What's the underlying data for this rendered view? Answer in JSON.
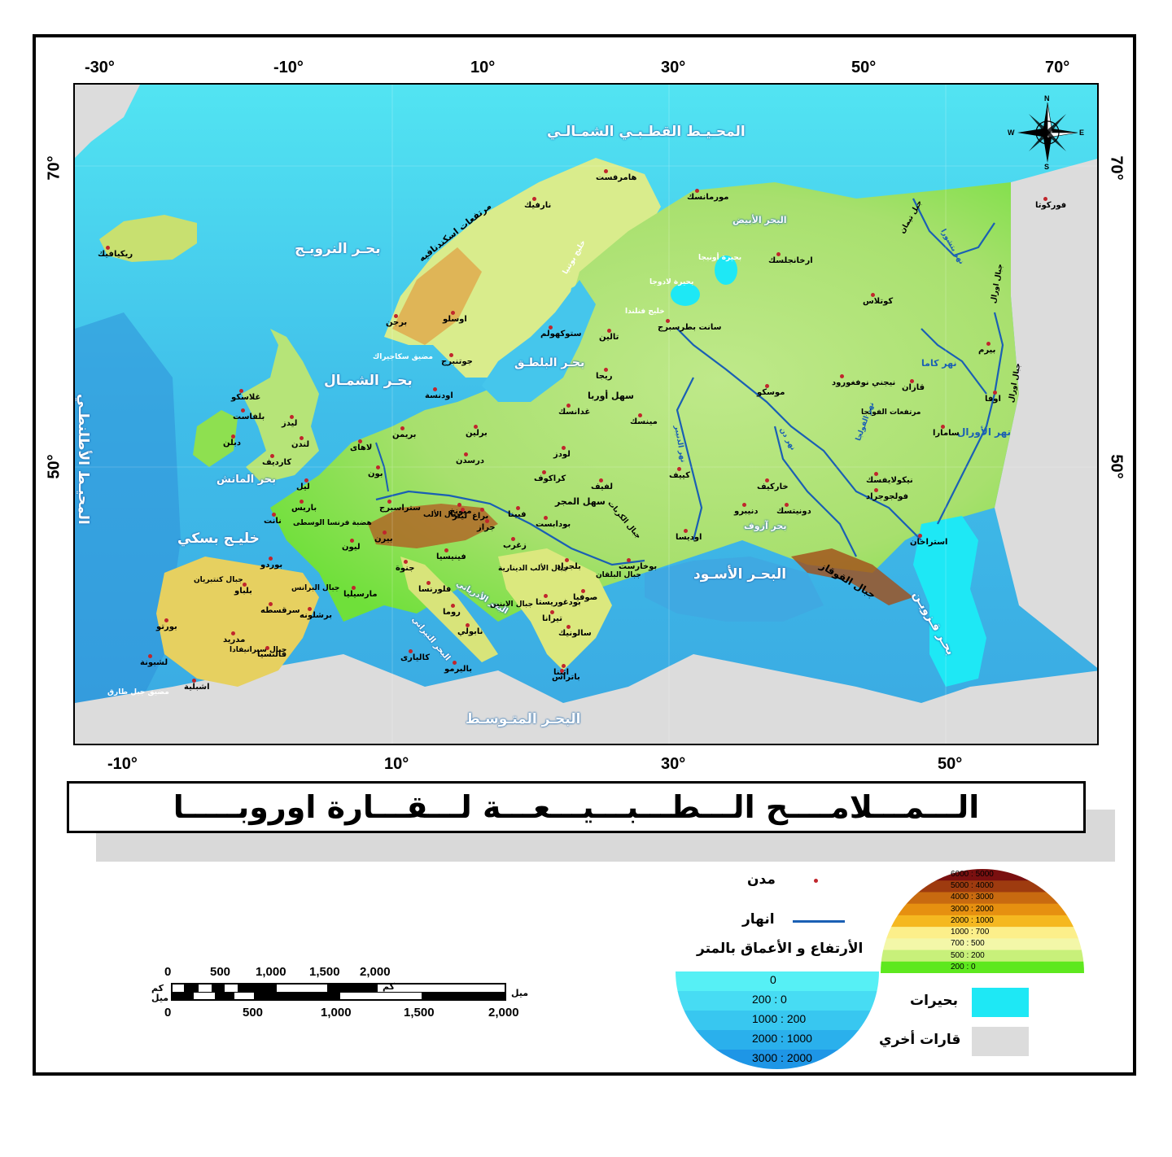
{
  "title": "الـــمـــلامــــح الـــطـــبـــيـــعـــة لـــقـــارة اوروبـــــا",
  "top_degrees": [
    "-30°",
    "-10°",
    "10°",
    "30°",
    "50°",
    "70°"
  ],
  "bottom_degrees": [
    "-10°",
    "10°",
    "30°",
    "50°"
  ],
  "left_degrees": [
    "70°",
    "50°"
  ],
  "right_degrees": [
    "70°",
    "50°"
  ],
  "compass": {
    "n": "N",
    "s": "S",
    "e": "E",
    "w": "W"
  },
  "seas": {
    "arctic": "المحـيـط القطـبـي الشمـالـي",
    "norwegian": "بحـر النرويـج",
    "north": "بحـر الشمـال",
    "baltic": "بحـر البلطـق",
    "atlantic": "المحيـط الأطلنطـي",
    "biscay": "خليـج بسكي",
    "channel": "بحر المانش",
    "mediterranean": "البحـر المتـوسـط",
    "black": "البحـر الأسـود",
    "caspian": "بحـر قـزويـن",
    "white": "البحر الأبيض",
    "azov": "بحر آزوف",
    "adriatic": "البحر الأدرياتي",
    "tyrrhenian": "البحر التيراني"
  },
  "features": {
    "scandinavian_mts": "مرتفعات اسكندنافيه",
    "urals_1": "جبال اورال",
    "urals_2": "جبال اورال",
    "caucasus": "جبال القوقاز",
    "alps": "جبال الألب",
    "carpathians": "جبال الكربات",
    "balkans": "جبال البلقان",
    "pyrenees": "جبال البرانس",
    "sierra_nevada": "جبال سيرانيفادا",
    "cantabrian": "جبال كنتبريان",
    "volga_upland": "مرتفعات الفولجا",
    "hungarian_plain": "سهل المجر",
    "dinaric": "جبال الألب الدينارية",
    "apennines": "جبال الابنين",
    "gibraltar": "مضيق جبل طارق",
    "skagerrak": "مضيق سكاجيراك",
    "bothnia": "خليج بوتنيا",
    "finland_gulf": "خليج فنلندا",
    "ladoga": "بحيرة لادوجا",
    "onega": "بحيرة أونيجا",
    "massif": "هضبة فرنسا الوسطى",
    "dnieper": "نهر الدنيبر",
    "don": "نهر دن",
    "volga": "نهر الفولجا",
    "kama": "نهر كاما",
    "ural_river": "نهر الأورال",
    "pechora": "نهر بتشورا",
    "valdai": "سهل أوربا",
    "timan": "جبل تيمان"
  },
  "cities": [
    "ريكيافيك",
    "برجن",
    "اوسلو",
    "ستوكهولم",
    "جوتنبرج",
    "اودنسة",
    "هامرفست",
    "نارفيك",
    "مورمانسك",
    "ارخانجلسك",
    "كوتلاس",
    "فوركوتا",
    "بيرم",
    "اوفا",
    "قازان",
    "سامارا",
    "نيجني نوفغورود",
    "موسكو",
    "سانت بطرسبرج",
    "تالين",
    "ريجا",
    "غدانسك",
    "مينسك",
    "لودز",
    "كراكوف",
    "لفيف",
    "كييف",
    "خاركيف",
    "دونيتسك",
    "دنيبرو",
    "اوديسا",
    "بوخارست",
    "صوفيا",
    "بلجراد",
    "زغرب",
    "بودابست",
    "فيينا",
    "براغ",
    "ميونخ",
    "درسدن",
    "برلين",
    "بريمن",
    "لاهاى",
    "بون",
    "ليل",
    "باريس",
    "نانت",
    "بوردو",
    "ليون",
    "مارسيليا",
    "جنوة",
    "فلورنسا",
    "روما",
    "نابولي",
    "باليرمو",
    "كاليارى",
    "فينيسيا",
    "برشلونه",
    "مدريد",
    "بلباو",
    "سرقسطه",
    "فالنسيا",
    "بورتو",
    "لشبونة",
    "اشبلية",
    "لندن",
    "كارديف",
    "ليدز",
    "غلاسكو",
    "بلفاست",
    "دبلن",
    "سالونيك",
    "تيرانا",
    "بودغوريستا",
    "اثينا",
    "باتراس",
    "فولجوجراد",
    "استراخان",
    "نيكولايفسك",
    "ستراسبرج",
    "بيرن",
    "لينز",
    "جراز"
  ],
  "legend": {
    "cities_label": "مدن",
    "rivers_label": "انهار",
    "elevation_title": "الأرتفاع و الأعماق بالمتر",
    "elevation_classes": [
      "6000 : 5000",
      "5000 : 4000",
      "4000 : 3000",
      "3000 : 2000",
      "2000 : 1000",
      "1000 : 700",
      "700 : 500",
      "500 : 200",
      "200 : 0"
    ],
    "elevation_colors": [
      "#7a1010",
      "#9e3b0f",
      "#c86a10",
      "#e69010",
      "#f5b820",
      "#fcef8a",
      "#f3f7a8",
      "#c8f07a",
      "#5ee81e"
    ],
    "depth_classes": [
      "0",
      "200 : 0",
      "1000 : 200",
      "2000 : 1000",
      "3000 : 2000"
    ],
    "depth_colors": [
      "#56f0f5",
      "#47dcf3",
      "#38c7f0",
      "#2ab0ec",
      "#1e96e6"
    ],
    "lakes_label": "بحيرات",
    "lakes_color": "#1ee8f5",
    "other_label": "قارات أخري",
    "other_color": "#dcdcdc",
    "river_color": "#1a5fb4",
    "city_color": "#c0262c"
  },
  "scale": {
    "km_label": "كم",
    "mile_label": "ميل",
    "km_values": [
      "0",
      "500",
      "1,000",
      "1,500",
      "2,000"
    ],
    "mile_values": [
      "0",
      "500",
      "1,000",
      "1,500",
      "2,000"
    ]
  }
}
